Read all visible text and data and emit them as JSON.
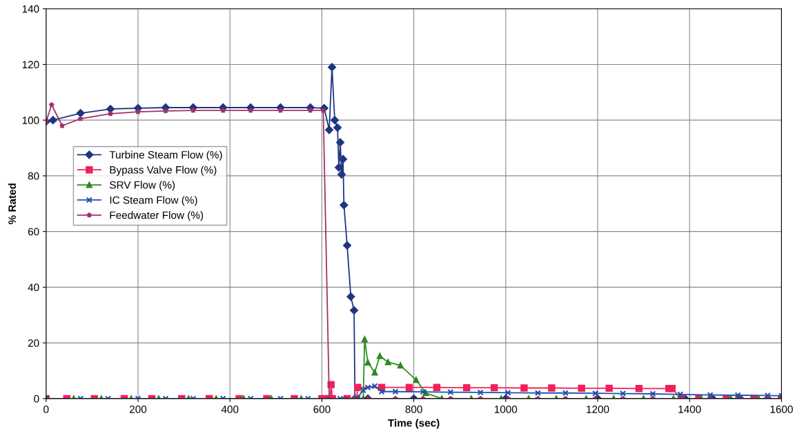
{
  "chart_data": {
    "type": "line",
    "xlabel": "Time (sec)",
    "ylabel": "% Rated",
    "xlim": [
      0,
      1600
    ],
    "ylim": [
      0,
      140
    ],
    "xticks": [
      0,
      200,
      400,
      600,
      800,
      1000,
      1200,
      1400,
      1600
    ],
    "yticks": [
      0,
      20,
      40,
      60,
      80,
      100,
      120,
      140
    ],
    "grid": true,
    "legend": "top left",
    "line_style": "solid",
    "series": [
      {
        "name": "Turbine Steam Flow (%)",
        "color": "#1f3580",
        "marker": "diamond",
        "x": [
          0,
          15,
          75,
          140,
          200,
          260,
          320,
          385,
          445,
          510,
          575,
          605,
          616,
          622,
          628,
          634,
          637,
          640,
          643,
          646,
          648,
          655,
          663,
          670,
          672,
          700,
          800,
          1000,
          1200,
          1390,
          1450,
          1510,
          1570,
          1600
        ],
        "values": [
          99.5,
          100,
          102.5,
          104,
          104.3,
          104.5,
          104.5,
          104.5,
          104.5,
          104.5,
          104.5,
          104.3,
          96.5,
          119,
          100,
          97.3,
          83,
          92,
          80.5,
          86,
          69.5,
          55,
          36.6,
          31.7,
          0,
          0,
          0,
          0,
          0,
          0,
          0,
          0,
          0,
          0
        ]
      },
      {
        "name": "Bypass Valve Flow (%)",
        "color": "#f0205a",
        "marker": "square",
        "x": [
          0,
          45,
          105,
          170,
          230,
          295,
          355,
          420,
          480,
          540,
          600,
          613,
          618,
          620,
          623,
          655,
          676,
          678,
          730,
          790,
          850,
          915,
          975,
          1040,
          1100,
          1165,
          1225,
          1290,
          1355,
          1362,
          1382,
          1420,
          1480,
          1540,
          1600
        ],
        "values": [
          0,
          0,
          0,
          0,
          0,
          0,
          0,
          0,
          0,
          0,
          0,
          0,
          0,
          5,
          0,
          0,
          0,
          4,
          4,
          4,
          4,
          3.9,
          3.9,
          3.8,
          3.8,
          3.7,
          3.7,
          3.6,
          3.6,
          3.6,
          0,
          0,
          0,
          0,
          0
        ]
      },
      {
        "name": "SRV Flow (%)",
        "color": "#2e8a22",
        "marker": "triangle",
        "x": [
          0,
          60,
          120,
          185,
          245,
          310,
          370,
          430,
          490,
          555,
          615,
          680,
          690,
          693,
          700,
          715,
          726,
          744,
          771,
          805,
          826,
          861,
          925,
          990,
          1050,
          1110,
          1175,
          1235,
          1300,
          1365,
          1425,
          1490,
          1550,
          1600
        ],
        "values": [
          0,
          0,
          0,
          0,
          0,
          0,
          0,
          0,
          0,
          0,
          0,
          0,
          0,
          21.3,
          13,
          9.4,
          15.3,
          13.1,
          11.9,
          6.7,
          2,
          0,
          0,
          0,
          0,
          0,
          0,
          0,
          0,
          0,
          0,
          0,
          0,
          0
        ]
      },
      {
        "name": "IC Steam Flow (%)",
        "color": "#1f4fb0",
        "marker": "cross",
        "x": [
          0,
          75,
          135,
          200,
          260,
          320,
          385,
          445,
          510,
          570,
          640,
          676,
          690,
          700,
          715,
          730,
          760,
          820,
          880,
          945,
          1005,
          1070,
          1130,
          1195,
          1255,
          1320,
          1380,
          1445,
          1505,
          1570,
          1600
        ],
        "values": [
          0,
          0,
          0,
          0,
          0,
          0,
          0,
          0,
          0,
          0,
          0,
          0,
          3,
          4,
          4.5,
          2.5,
          2.5,
          2.4,
          2.3,
          2.2,
          2.1,
          2,
          2,
          1.9,
          1.8,
          1.7,
          1.5,
          1.3,
          1.2,
          1.1,
          1
        ]
      },
      {
        "name": "Feedwater Flow (%)",
        "color": "#a0306a",
        "marker": "star",
        "x": [
          0,
          12,
          35,
          75,
          140,
          200,
          260,
          320,
          385,
          445,
          510,
          575,
          603,
          616,
          650,
          700,
          760,
          820,
          880,
          945,
          1005,
          1070,
          1130,
          1195,
          1255,
          1320,
          1380,
          1445,
          1510,
          1570,
          1600
        ],
        "values": [
          99.5,
          105.5,
          98,
          100.5,
          102.3,
          103,
          103.3,
          103.5,
          103.5,
          103.5,
          103.5,
          103.5,
          103.5,
          0,
          0,
          0,
          0,
          0,
          0,
          0,
          0,
          0,
          0,
          0,
          0,
          0,
          0,
          0,
          0,
          0,
          0
        ]
      }
    ]
  }
}
